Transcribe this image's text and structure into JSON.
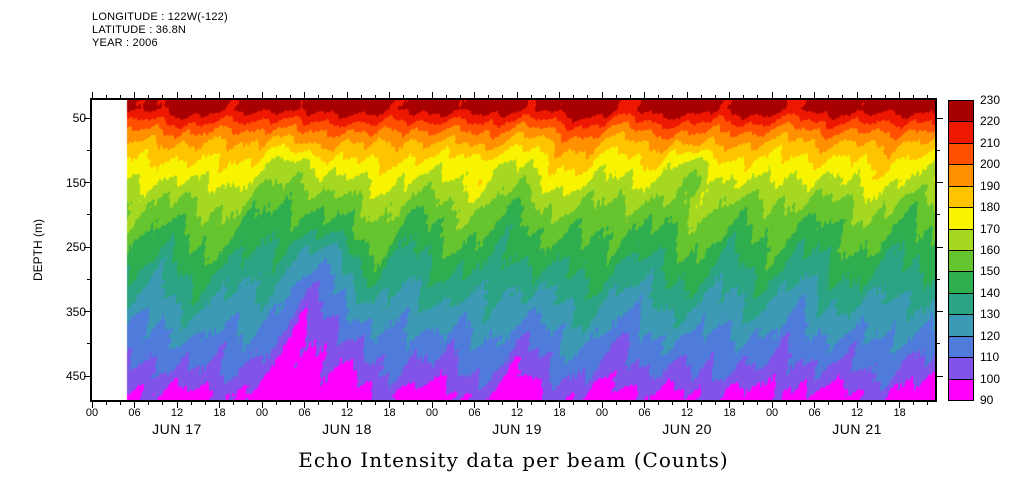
{
  "header": {
    "longitude": "LONGITUDE : 122W(-122)",
    "latitude": "LATITUDE : 36.8N",
    "year": "YEAR : 2006"
  },
  "title": "Echo Intensity data per beam (Counts)",
  "axes": {
    "y_label": "DEPTH (m)",
    "y_ticks": [
      50,
      150,
      250,
      350,
      450
    ],
    "y_minor_ticks": [
      100,
      200,
      300,
      400
    ],
    "depth_range": [
      22,
      487
    ],
    "x_range_hours": [
      0,
      119
    ],
    "x_ticks": {
      "hours": [
        0,
        6,
        12,
        18,
        24,
        30,
        36,
        42,
        48,
        54,
        60,
        66,
        72,
        78,
        84,
        90,
        96,
        102,
        108,
        114
      ],
      "labels": [
        "00",
        "06",
        "12",
        "18",
        "00",
        "06",
        "12",
        "18",
        "00",
        "06",
        "12",
        "18",
        "00",
        "06",
        "12",
        "18",
        "00",
        "06",
        "12",
        "18"
      ]
    },
    "day_labels": [
      {
        "label": "JUN 17",
        "center_hour": 12
      },
      {
        "label": "JUN 18",
        "center_hour": 36
      },
      {
        "label": "JUN 19",
        "center_hour": 60
      },
      {
        "label": "JUN 20",
        "center_hour": 84
      },
      {
        "label": "JUN 21",
        "center_hour": 108
      }
    ]
  },
  "colorbar": {
    "levels": [
      90,
      100,
      110,
      120,
      130,
      140,
      150,
      160,
      170,
      180,
      190,
      200,
      210,
      220,
      230
    ],
    "colors": [
      "#ff00ff",
      "#8153e8",
      "#4f7cdb",
      "#3c9ab5",
      "#2aa482",
      "#2fae4f",
      "#66c42e",
      "#a6d822",
      "#f8f400",
      "#ffc400",
      "#ff9000",
      "#ff5000",
      "#ee1800",
      "#a80000"
    ]
  },
  "chart_data": {
    "type": "heatmap",
    "title": "Echo Intensity data per beam (Counts)",
    "xlabel": "",
    "ylabel": "DEPTH (m)",
    "units": "Counts",
    "value_range": [
      90,
      230
    ],
    "x_hours": [
      5,
      10,
      15,
      20,
      25,
      30,
      35,
      40,
      45,
      50,
      55,
      60,
      65,
      70,
      75,
      80,
      85,
      90,
      95,
      100,
      105,
      110,
      115,
      118
    ],
    "depths_m": [
      35,
      50,
      70,
      90,
      120,
      150,
      180,
      220,
      260,
      300,
      350,
      400,
      450,
      480
    ],
    "values": [
      [
        227,
        222,
        229,
        225,
        220,
        228,
        223,
        229,
        221,
        226,
        228,
        219,
        227,
        229,
        222,
        225,
        229,
        223,
        228,
        221,
        226,
        229,
        223,
        225
      ],
      [
        216,
        211,
        218,
        214,
        209,
        217,
        212,
        219,
        210,
        215,
        217,
        208,
        216,
        218,
        211,
        214,
        219,
        212,
        217,
        210,
        215,
        218,
        212,
        214
      ],
      [
        202,
        197,
        204,
        200,
        195,
        203,
        198,
        205,
        196,
        201,
        203,
        194,
        202,
        204,
        197,
        200,
        205,
        198,
        203,
        196,
        201,
        204,
        198,
        200
      ],
      [
        191,
        186,
        193,
        189,
        184,
        192,
        187,
        194,
        185,
        190,
        192,
        183,
        191,
        193,
        186,
        189,
        194,
        187,
        192,
        185,
        190,
        193,
        187,
        189
      ],
      [
        180,
        175,
        182,
        178,
        173,
        167,
        176,
        183,
        174,
        179,
        170,
        172,
        180,
        182,
        175,
        178,
        168,
        176,
        181,
        174,
        179,
        182,
        176,
        178
      ],
      [
        171,
        166,
        173,
        169,
        164,
        158,
        167,
        174,
        165,
        170,
        172,
        163,
        171,
        173,
        166,
        169,
        160,
        167,
        172,
        165,
        170,
        173,
        167,
        169
      ],
      [
        162,
        157,
        164,
        160,
        155,
        150,
        158,
        165,
        156,
        161,
        163,
        154,
        162,
        164,
        157,
        160,
        165,
        158,
        163,
        156,
        161,
        164,
        158,
        160
      ],
      [
        153,
        148,
        155,
        151,
        146,
        141,
        149,
        156,
        147,
        152,
        154,
        145,
        153,
        155,
        148,
        151,
        156,
        149,
        154,
        147,
        152,
        155,
        149,
        151
      ],
      [
        146,
        141,
        148,
        144,
        139,
        128,
        131,
        149,
        140,
        145,
        147,
        138,
        146,
        148,
        141,
        144,
        149,
        142,
        147,
        140,
        145,
        148,
        142,
        144
      ],
      [
        138,
        133,
        140,
        136,
        131,
        117,
        121,
        141,
        132,
        137,
        139,
        130,
        138,
        140,
        133,
        136,
        141,
        134,
        139,
        132,
        137,
        140,
        134,
        136
      ],
      [
        128,
        123,
        130,
        126,
        121,
        107,
        111,
        131,
        122,
        127,
        129,
        120,
        128,
        130,
        123,
        126,
        131,
        124,
        129,
        122,
        127,
        130,
        124,
        126
      ],
      [
        118,
        113,
        120,
        116,
        111,
        99,
        102,
        121,
        112,
        117,
        119,
        110,
        118,
        120,
        113,
        116,
        121,
        114,
        119,
        112,
        117,
        120,
        114,
        116
      ],
      [
        108,
        103,
        110,
        106,
        101,
        93,
        95,
        111,
        102,
        107,
        109,
        100,
        108,
        110,
        103,
        106,
        111,
        104,
        109,
        102,
        107,
        110,
        104,
        106
      ],
      [
        99,
        94,
        101,
        97,
        92,
        90,
        91,
        102,
        93,
        98,
        100,
        91,
        99,
        101,
        94,
        97,
        102,
        95,
        100,
        93,
        98,
        101,
        95,
        97
      ]
    ]
  }
}
